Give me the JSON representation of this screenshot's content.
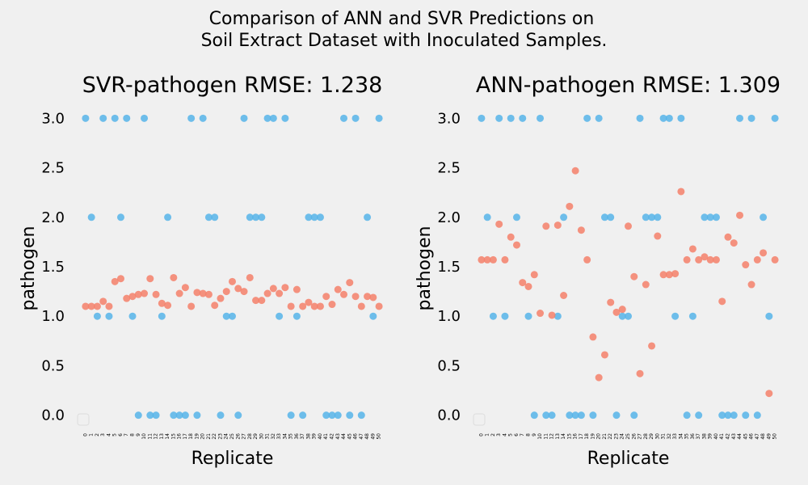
{
  "suptitle": [
    "Comparison of ANN and SVR Predictions on",
    "Soil Extract Dataset with Inoculated Samples."
  ],
  "colors": {
    "actual": "#56b4e9",
    "predicted": "#f4806a",
    "background": "#f0f0f0"
  },
  "chart_data": [
    {
      "type": "scatter",
      "title": "SVR-pathogen RMSE: 1.238",
      "xlabel": "Replicate",
      "ylabel": "pathogen",
      "ylim": [
        -0.15,
        3.15
      ],
      "yticks": [
        "0.0",
        "0.5",
        "1.0",
        "1.5",
        "2.0",
        "2.5",
        "3.0"
      ],
      "x": [
        0,
        1,
        2,
        3,
        4,
        5,
        6,
        7,
        8,
        9,
        10,
        11,
        12,
        13,
        14,
        15,
        16,
        17,
        18,
        19,
        20,
        21,
        22,
        23,
        24,
        25,
        26,
        27,
        28,
        29,
        30,
        31,
        32,
        33,
        34,
        35,
        36,
        37,
        38,
        39,
        40,
        41,
        42,
        43,
        44,
        45,
        46,
        47,
        48,
        49,
        50
      ],
      "grid": false,
      "legend": "lower-left, empty",
      "series": [
        {
          "color": "#56b4e9",
          "values": [
            3,
            2,
            1,
            3,
            1,
            3,
            2,
            3,
            1,
            0,
            3,
            0,
            0,
            1,
            2,
            0,
            0,
            0,
            3,
            0,
            3,
            2,
            2,
            0,
            1,
            1,
            0,
            3,
            2,
            2,
            2,
            3,
            3,
            1,
            3,
            0,
            1,
            0,
            2,
            2,
            2,
            0,
            0,
            0,
            3,
            0,
            3,
            0,
            2,
            1,
            3
          ]
        },
        {
          "color": "#f4806a",
          "values": [
            1.1,
            1.1,
            1.1,
            1.15,
            1.1,
            1.35,
            1.38,
            1.18,
            1.2,
            1.22,
            1.23,
            1.38,
            1.22,
            1.13,
            1.11,
            1.39,
            1.23,
            1.29,
            1.1,
            1.24,
            1.23,
            1.22,
            1.11,
            1.18,
            1.25,
            1.35,
            1.28,
            1.25,
            1.39,
            1.16,
            1.16,
            1.23,
            1.28,
            1.23,
            1.29,
            1.1,
            1.27,
            1.1,
            1.14,
            1.1,
            1.1,
            1.2,
            1.12,
            1.27,
            1.22,
            1.34,
            1.2,
            1.1,
            1.2,
            1.19,
            1.1
          ]
        }
      ]
    },
    {
      "type": "scatter",
      "title": "ANN-pathogen RMSE: 1.309",
      "xlabel": "Replicate",
      "ylabel": "pathogen",
      "ylim": [
        -0.15,
        3.15
      ],
      "yticks": [
        "0.0",
        "0.5",
        "1.0",
        "1.5",
        "2.0",
        "2.5",
        "3.0"
      ],
      "x": [
        0,
        1,
        2,
        3,
        4,
        5,
        6,
        7,
        8,
        9,
        10,
        11,
        12,
        13,
        14,
        15,
        16,
        17,
        18,
        19,
        20,
        21,
        22,
        23,
        24,
        25,
        26,
        27,
        28,
        29,
        30,
        31,
        32,
        33,
        34,
        35,
        36,
        37,
        38,
        39,
        40,
        41,
        42,
        43,
        44,
        45,
        46,
        47,
        48,
        49,
        50
      ],
      "grid": false,
      "legend": "lower-left, empty",
      "series": [
        {
          "color": "#56b4e9",
          "values": [
            3,
            2,
            1,
            3,
            1,
            3,
            2,
            3,
            1,
            0,
            3,
            0,
            0,
            1,
            2,
            0,
            0,
            0,
            3,
            0,
            3,
            2,
            2,
            0,
            1,
            1,
            0,
            3,
            2,
            2,
            2,
            3,
            3,
            1,
            3,
            0,
            1,
            0,
            2,
            2,
            2,
            0,
            0,
            0,
            3,
            0,
            3,
            0,
            2,
            1,
            3
          ]
        },
        {
          "color": "#f4806a",
          "values": [
            1.57,
            1.57,
            1.57,
            1.93,
            1.57,
            1.8,
            1.72,
            1.34,
            1.3,
            1.42,
            1.03,
            1.91,
            1.01,
            1.92,
            1.21,
            2.11,
            2.47,
            1.87,
            1.57,
            0.79,
            0.38,
            0.61,
            1.14,
            1.04,
            1.07,
            1.91,
            1.4,
            0.42,
            1.32,
            0.7,
            1.81,
            1.42,
            1.42,
            1.43,
            2.26,
            1.57,
            1.68,
            1.57,
            1.6,
            1.57,
            1.57,
            1.15,
            1.8,
            1.74,
            2.02,
            1.52,
            1.32,
            1.57,
            1.64,
            0.22,
            1.57
          ]
        }
      ]
    }
  ]
}
